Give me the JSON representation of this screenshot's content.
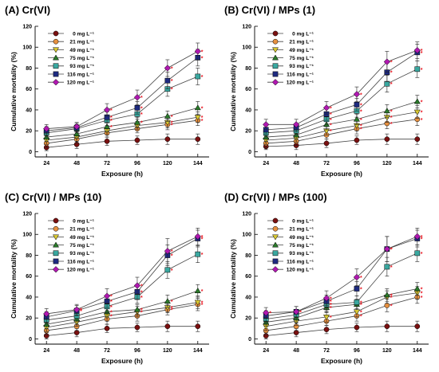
{
  "chart_data": [
    {
      "type": "line",
      "title": "(A) Cr(VI)",
      "xlabel": "Exposure (h)",
      "ylabel": "Cumulative mortality (%)",
      "x": [
        24,
        48,
        72,
        96,
        120,
        144
      ],
      "xlim": [
        15,
        153
      ],
      "ylim": [
        -5,
        120
      ],
      "yticks": [
        0,
        20,
        40,
        60,
        80,
        100,
        120
      ],
      "grid": false,
      "legend_position": "top-left",
      "star_symbol": "*",
      "series": [
        {
          "name": "0 mg L⁻¹",
          "color": "#7a1010",
          "marker": "circle",
          "values": [
            4,
            7,
            10,
            11,
            12,
            12
          ],
          "errors": [
            3,
            4,
            4,
            4,
            5,
            5
          ],
          "significant": [
            false,
            false,
            false,
            false,
            false,
            false
          ]
        },
        {
          "name": "21 mg L⁻¹",
          "color": "#e69040",
          "marker": "circle",
          "values": [
            8,
            12,
            18,
            22,
            26,
            30
          ],
          "errors": [
            4,
            4,
            4,
            4,
            5,
            5
          ],
          "significant": [
            false,
            false,
            false,
            false,
            true,
            true
          ]
        },
        {
          "name": "49 mg L⁻¹",
          "color": "#d8c832",
          "marker": "triangle-down",
          "values": [
            11,
            14,
            20,
            25,
            28,
            33
          ],
          "errors": [
            4,
            4,
            4,
            4,
            5,
            5
          ],
          "significant": [
            false,
            false,
            false,
            false,
            true,
            true
          ]
        },
        {
          "name": "75 mg L⁻¹",
          "color": "#2a7a2a",
          "marker": "triangle-up",
          "values": [
            14,
            17,
            24,
            28,
            34,
            42
          ],
          "errors": [
            4,
            4,
            5,
            5,
            5,
            6
          ],
          "significant": [
            false,
            false,
            true,
            true,
            true,
            true
          ]
        },
        {
          "name": "93 mg L⁻¹",
          "color": "#3aa8a0",
          "marker": "square",
          "values": [
            18,
            22,
            30,
            36,
            60,
            72
          ],
          "errors": [
            4,
            4,
            5,
            5,
            7,
            8
          ],
          "significant": [
            false,
            false,
            true,
            true,
            true,
            true
          ]
        },
        {
          "name": "116 mg L⁻¹",
          "color": "#1e2a80",
          "marker": "square",
          "values": [
            20,
            23,
            33,
            42,
            68,
            90
          ],
          "errors": [
            4,
            4,
            5,
            6,
            8,
            8
          ],
          "significant": [
            false,
            false,
            true,
            true,
            true,
            true
          ]
        },
        {
          "name": "120 mg L⁻¹",
          "color": "#b018b0",
          "marker": "diamond",
          "values": [
            22,
            24,
            40,
            52,
            80,
            96
          ],
          "errors": [
            4,
            4,
            6,
            7,
            8,
            8
          ],
          "significant": [
            false,
            false,
            true,
            true,
            true,
            true
          ]
        }
      ]
    },
    {
      "type": "line",
      "title": "(B) Cr(VI) / MPs (1)",
      "xlabel": "Exposure (h)",
      "ylabel": "Cumulative mortality (%)",
      "x": [
        24,
        48,
        72,
        96,
        120,
        144
      ],
      "xlim": [
        15,
        153
      ],
      "ylim": [
        -5,
        120
      ],
      "yticks": [
        0,
        20,
        40,
        60,
        80,
        100,
        120
      ],
      "grid": false,
      "legend_position": "top-left",
      "star_symbol": "*",
      "series": [
        {
          "name": "0 mg L⁻¹",
          "color": "#7a1010",
          "marker": "circle",
          "values": [
            5,
            6,
            8,
            11,
            12,
            12
          ],
          "errors": [
            3,
            4,
            4,
            4,
            5,
            5
          ],
          "significant": [
            false,
            false,
            false,
            false,
            false,
            false
          ]
        },
        {
          "name": "21 mg L⁻¹",
          "color": "#e69040",
          "marker": "circle",
          "values": [
            8,
            10,
            16,
            22,
            27,
            31
          ],
          "errors": [
            4,
            4,
            4,
            5,
            5,
            6
          ],
          "significant": [
            false,
            false,
            false,
            true,
            true,
            true
          ]
        },
        {
          "name": "49 mg L⁻¹",
          "color": "#d8c832",
          "marker": "triangle-down",
          "values": [
            11,
            13,
            20,
            25,
            33,
            38
          ],
          "errors": [
            4,
            4,
            4,
            5,
            5,
            6
          ],
          "significant": [
            false,
            false,
            true,
            true,
            true,
            true
          ]
        },
        {
          "name": "75 mg L⁻¹",
          "color": "#2a7a2a",
          "marker": "triangle-up",
          "values": [
            14,
            16,
            26,
            31,
            39,
            48
          ],
          "errors": [
            4,
            4,
            5,
            5,
            6,
            6
          ],
          "significant": [
            false,
            false,
            true,
            true,
            true,
            true
          ]
        },
        {
          "name": "93 mg L⁻¹",
          "color": "#3aa8a0",
          "marker": "square",
          "values": [
            18,
            20,
            31,
            39,
            65,
            79
          ],
          "errors": [
            4,
            4,
            5,
            6,
            8,
            8
          ],
          "significant": [
            false,
            false,
            true,
            true,
            true,
            true
          ]
        },
        {
          "name": "116 mg L⁻¹",
          "color": "#1e2a80",
          "marker": "square",
          "values": [
            21,
            23,
            36,
            45,
            76,
            95
          ],
          "errors": [
            4,
            4,
            6,
            6,
            9,
            8
          ],
          "significant": [
            false,
            false,
            true,
            true,
            true,
            true
          ]
        },
        {
          "name": "120 mg L⁻¹",
          "color": "#b018b0",
          "marker": "diamond",
          "values": [
            26,
            26,
            42,
            55,
            86,
            97
          ],
          "errors": [
            5,
            5,
            6,
            7,
            10,
            8
          ],
          "significant": [
            false,
            false,
            true,
            true,
            true,
            true
          ]
        }
      ]
    },
    {
      "type": "line",
      "title": "(C) Cr(VI) / MPs (10)",
      "xlabel": "Exposure (h)",
      "ylabel": "Cumulative mortality (%)",
      "x": [
        24,
        48,
        72,
        96,
        120,
        144
      ],
      "xlim": [
        15,
        153
      ],
      "ylim": [
        -5,
        120
      ],
      "yticks": [
        0,
        20,
        40,
        60,
        80,
        100,
        120
      ],
      "grid": false,
      "legend_position": "top-left",
      "star_symbol": "*",
      "series": [
        {
          "name": "0 mg L⁻¹",
          "color": "#7a1010",
          "marker": "circle",
          "values": [
            3,
            6,
            10,
            11,
            12,
            12
          ],
          "errors": [
            3,
            4,
            4,
            4,
            5,
            5
          ],
          "significant": [
            false,
            false,
            false,
            false,
            false,
            false
          ]
        },
        {
          "name": "21 mg L⁻¹",
          "color": "#e69040",
          "marker": "circle",
          "values": [
            8,
            12,
            19,
            22,
            28,
            33
          ],
          "errors": [
            4,
            4,
            5,
            5,
            5,
            6
          ],
          "significant": [
            false,
            false,
            false,
            false,
            true,
            true
          ]
        },
        {
          "name": "49 mg L⁻¹",
          "color": "#d8c832",
          "marker": "triangle-down",
          "values": [
            11,
            16,
            22,
            26,
            30,
            35
          ],
          "errors": [
            4,
            4,
            5,
            5,
            5,
            6
          ],
          "significant": [
            false,
            false,
            true,
            true,
            true,
            true
          ]
        },
        {
          "name": "75 mg L⁻¹",
          "color": "#2a7a2a",
          "marker": "triangle-up",
          "values": [
            14,
            19,
            26,
            28,
            36,
            46
          ],
          "errors": [
            4,
            5,
            5,
            5,
            6,
            6
          ],
          "significant": [
            false,
            false,
            true,
            true,
            true,
            true
          ]
        },
        {
          "name": "93 mg L⁻¹",
          "color": "#3aa8a0",
          "marker": "square",
          "values": [
            18,
            22,
            31,
            40,
            66,
            81
          ],
          "errors": [
            4,
            5,
            6,
            6,
            8,
            8
          ],
          "significant": [
            false,
            false,
            true,
            true,
            true,
            true
          ]
        },
        {
          "name": "116 mg L⁻¹",
          "color": "#1e2a80",
          "marker": "square",
          "values": [
            21,
            27,
            36,
            45,
            80,
            96
          ],
          "errors": [
            5,
            5,
            6,
            7,
            10,
            8
          ],
          "significant": [
            false,
            true,
            true,
            true,
            true,
            true
          ]
        },
        {
          "name": "120 mg L⁻¹",
          "color": "#b018b0",
          "marker": "diamond",
          "values": [
            24,
            28,
            41,
            51,
            84,
            98
          ],
          "errors": [
            5,
            5,
            7,
            8,
            12,
            8
          ],
          "significant": [
            false,
            true,
            true,
            true,
            true,
            true
          ]
        }
      ]
    },
    {
      "type": "line",
      "title": "(D) Cr(VI) / MPs (100)",
      "xlabel": "Exposure (h)",
      "ylabel": "Cumulative mortality (%)",
      "x": [
        24,
        48,
        72,
        96,
        120,
        144
      ],
      "xlim": [
        15,
        153
      ],
      "ylim": [
        -5,
        120
      ],
      "yticks": [
        0,
        20,
        40,
        60,
        80,
        100,
        120
      ],
      "grid": false,
      "legend_position": "top-left",
      "star_symbol": "*",
      "series": [
        {
          "name": "0 mg L⁻¹",
          "color": "#7a1010",
          "marker": "circle",
          "values": [
            3,
            6,
            9,
            11,
            12,
            12
          ],
          "errors": [
            3,
            4,
            4,
            4,
            5,
            5
          ],
          "significant": [
            false,
            false,
            false,
            false,
            false,
            false
          ]
        },
        {
          "name": "21 mg L⁻¹",
          "color": "#e69040",
          "marker": "circle",
          "values": [
            8,
            12,
            17,
            22,
            32,
            40
          ],
          "errors": [
            4,
            4,
            4,
            5,
            6,
            6
          ],
          "significant": [
            false,
            false,
            false,
            true,
            true,
            true
          ]
        },
        {
          "name": "49 mg L⁻¹",
          "color": "#d8c832",
          "marker": "triangle-down",
          "values": [
            12,
            17,
            21,
            26,
            40,
            44
          ],
          "errors": [
            4,
            4,
            5,
            5,
            6,
            6
          ],
          "significant": [
            false,
            false,
            true,
            true,
            true,
            true
          ]
        },
        {
          "name": "75 mg L⁻¹",
          "color": "#2a7a2a",
          "marker": "triangle-up",
          "values": [
            16,
            20,
            30,
            33,
            42,
            48
          ],
          "errors": [
            4,
            5,
            5,
            5,
            6,
            6
          ],
          "significant": [
            false,
            false,
            true,
            true,
            true,
            true
          ]
        },
        {
          "name": "93 mg L⁻¹",
          "color": "#3aa8a0",
          "marker": "square",
          "values": [
            19,
            23,
            33,
            35,
            69,
            82
          ],
          "errors": [
            4,
            5,
            6,
            6,
            9,
            8
          ],
          "significant": [
            false,
            false,
            true,
            true,
            true,
            true
          ]
        },
        {
          "name": "116 mg L⁻¹",
          "color": "#1e2a80",
          "marker": "square",
          "values": [
            22,
            26,
            36,
            48,
            86,
            96
          ],
          "errors": [
            5,
            5,
            6,
            7,
            12,
            8
          ],
          "significant": [
            false,
            false,
            true,
            true,
            true,
            true
          ]
        },
        {
          "name": "120 mg L⁻¹",
          "color": "#b018b0",
          "marker": "diamond",
          "values": [
            25,
            26,
            39,
            59,
            86,
            98
          ],
          "errors": [
            5,
            5,
            7,
            8,
            12,
            8
          ],
          "significant": [
            true,
            true,
            true,
            true,
            true,
            true
          ]
        }
      ]
    }
  ]
}
